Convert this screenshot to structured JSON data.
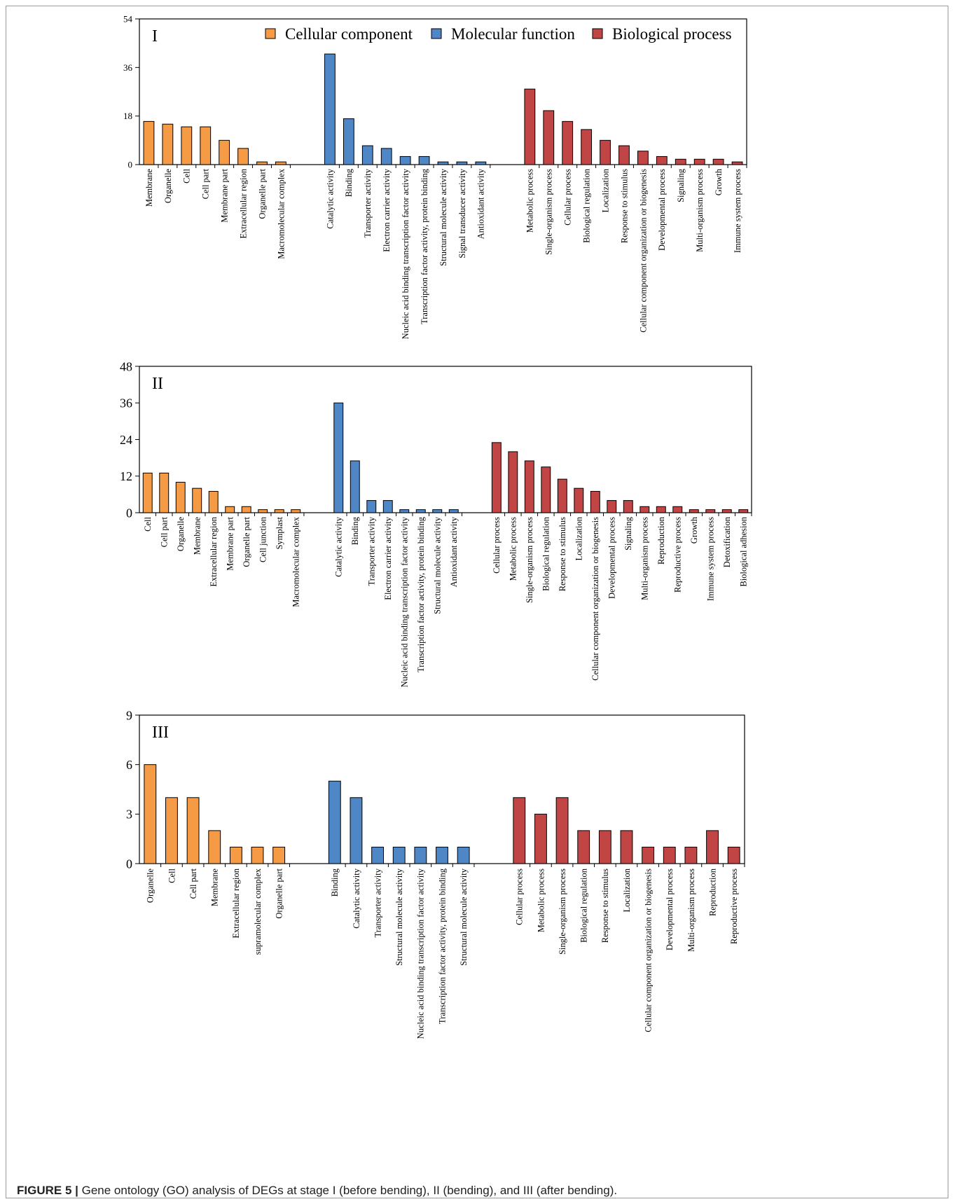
{
  "colors": {
    "cellular": "#f59a45",
    "molecular": "#4f86c6",
    "biological": "#c14545",
    "axis": "#000000"
  },
  "legend": {
    "items": [
      {
        "label": "Cellular component",
        "group": "cellular"
      },
      {
        "label": "Molecular function",
        "group": "molecular"
      },
      {
        "label": "Biological process",
        "group": "biological"
      }
    ]
  },
  "caption": {
    "label": "FIGURE 5 |",
    "text": " Gene ontology (GO) analysis of DEGs at stage I (before bending), II (bending), and III (after bending)."
  },
  "chart_data": [
    {
      "type": "bar",
      "panel_label": "I",
      "ylim": [
        0,
        54
      ],
      "yticks": [
        0,
        18,
        36,
        54
      ],
      "legend": "top-right",
      "groups": [
        {
          "group": "cellular",
          "categories": [
            "Membrane",
            "Organelle",
            "Cell",
            "Cell part",
            "Membrane part",
            "Extracellular region",
            "Organelle part",
            "Macromolecular complex"
          ],
          "values": [
            16,
            15,
            14,
            14,
            9,
            6,
            1,
            1
          ]
        },
        {
          "group": "molecular",
          "categories": [
            "Catalytic activity",
            "Binding",
            "Transporter activity",
            "Electron carrier activity",
            "Nucleic acid binding transcription factor activity",
            "Transcription factor activity, protein binding",
            "Structural molecule activity",
            "Signal transducer activity",
            "Antioxidant activity"
          ],
          "values": [
            41,
            17,
            7,
            6,
            3,
            3,
            1,
            1,
            1
          ]
        },
        {
          "group": "biological",
          "categories": [
            "Metabolic process",
            "Single-organism process",
            "Cellular process",
            "Biological regulation",
            "Localization",
            "Response to stimulus",
            "Cellular component organization or biogenesis",
            "Developmental process",
            "Signaling",
            "Multi-organism process",
            "Growth",
            "Immune system process"
          ],
          "values": [
            28,
            20,
            16,
            13,
            9,
            7,
            5,
            3,
            2,
            2,
            2,
            1
          ]
        }
      ]
    },
    {
      "type": "bar",
      "panel_label": "II",
      "ylim": [
        0,
        48
      ],
      "yticks": [
        0,
        12,
        24,
        36,
        48
      ],
      "groups": [
        {
          "group": "cellular",
          "categories": [
            "Cell",
            "Cell part",
            "Organelle",
            "Membrane",
            "Extracellular region",
            "Membrane part",
            "Organelle part",
            "Cell junction",
            "Symplast",
            "Macromolecular complex"
          ],
          "values": [
            13,
            13,
            10,
            8,
            7,
            2,
            2,
            1,
            1,
            1
          ]
        },
        {
          "group": "molecular",
          "categories": [
            "Catalytic activity",
            "Binding",
            "Transporter activity",
            "Electron carrier activity",
            "Nucleic acid binding transcription factor activity",
            "Transcription factor activity, protein binding",
            "Structural molecule activity",
            "Antioxidant activity"
          ],
          "values": [
            36,
            17,
            4,
            4,
            1,
            1,
            1,
            1
          ]
        },
        {
          "group": "biological",
          "categories": [
            "Cellular process",
            "Metabolic process",
            "Single-organism process",
            "Biological regulation",
            "Response to stimulus",
            "Localization",
            "Cellular component organization or biogenesis",
            "Developmental process",
            "Signaling",
            "Multi-organism process",
            "Reproduction",
            "Reproductive process",
            "Growth",
            "Immune system process",
            "Detoxification",
            "Biological adhesion"
          ],
          "values": [
            23,
            20,
            17,
            15,
            11,
            8,
            7,
            4,
            4,
            2,
            2,
            2,
            1,
            1,
            1,
            1
          ]
        }
      ]
    },
    {
      "type": "bar",
      "panel_label": "III",
      "ylim": [
        0,
        9
      ],
      "yticks": [
        0,
        3,
        6,
        9
      ],
      "groups": [
        {
          "group": "cellular",
          "categories": [
            "Organelle",
            "Cell",
            "Cell part",
            "Membrane",
            "Extracellular region",
            "supramolecular complex",
            "Organelle part"
          ],
          "values": [
            6,
            4,
            4,
            2,
            1,
            1,
            1
          ]
        },
        {
          "group": "molecular",
          "categories": [
            "Binding",
            "Catalytic activity",
            "Transporter activity",
            "Structural molecule activity",
            "Nucleic acid binding transcription factor activity",
            "Transcription factor activity, protein binding",
            "Structural molecule activity"
          ],
          "values": [
            5,
            4,
            1,
            1,
            1,
            1,
            1
          ]
        },
        {
          "group": "biological",
          "categories": [
            "Cellular process",
            "Metabolic process",
            "Single-organism process",
            "Biological regulation",
            "Response to stimulus",
            "Localization",
            "Cellular component organization or biogenesis",
            "Developmental process",
            "Multi-organism process",
            "Reproduction",
            "Reproductive process"
          ],
          "values": [
            4,
            3,
            4,
            2,
            2,
            2,
            1,
            1,
            1,
            2,
            1
          ]
        }
      ]
    }
  ]
}
